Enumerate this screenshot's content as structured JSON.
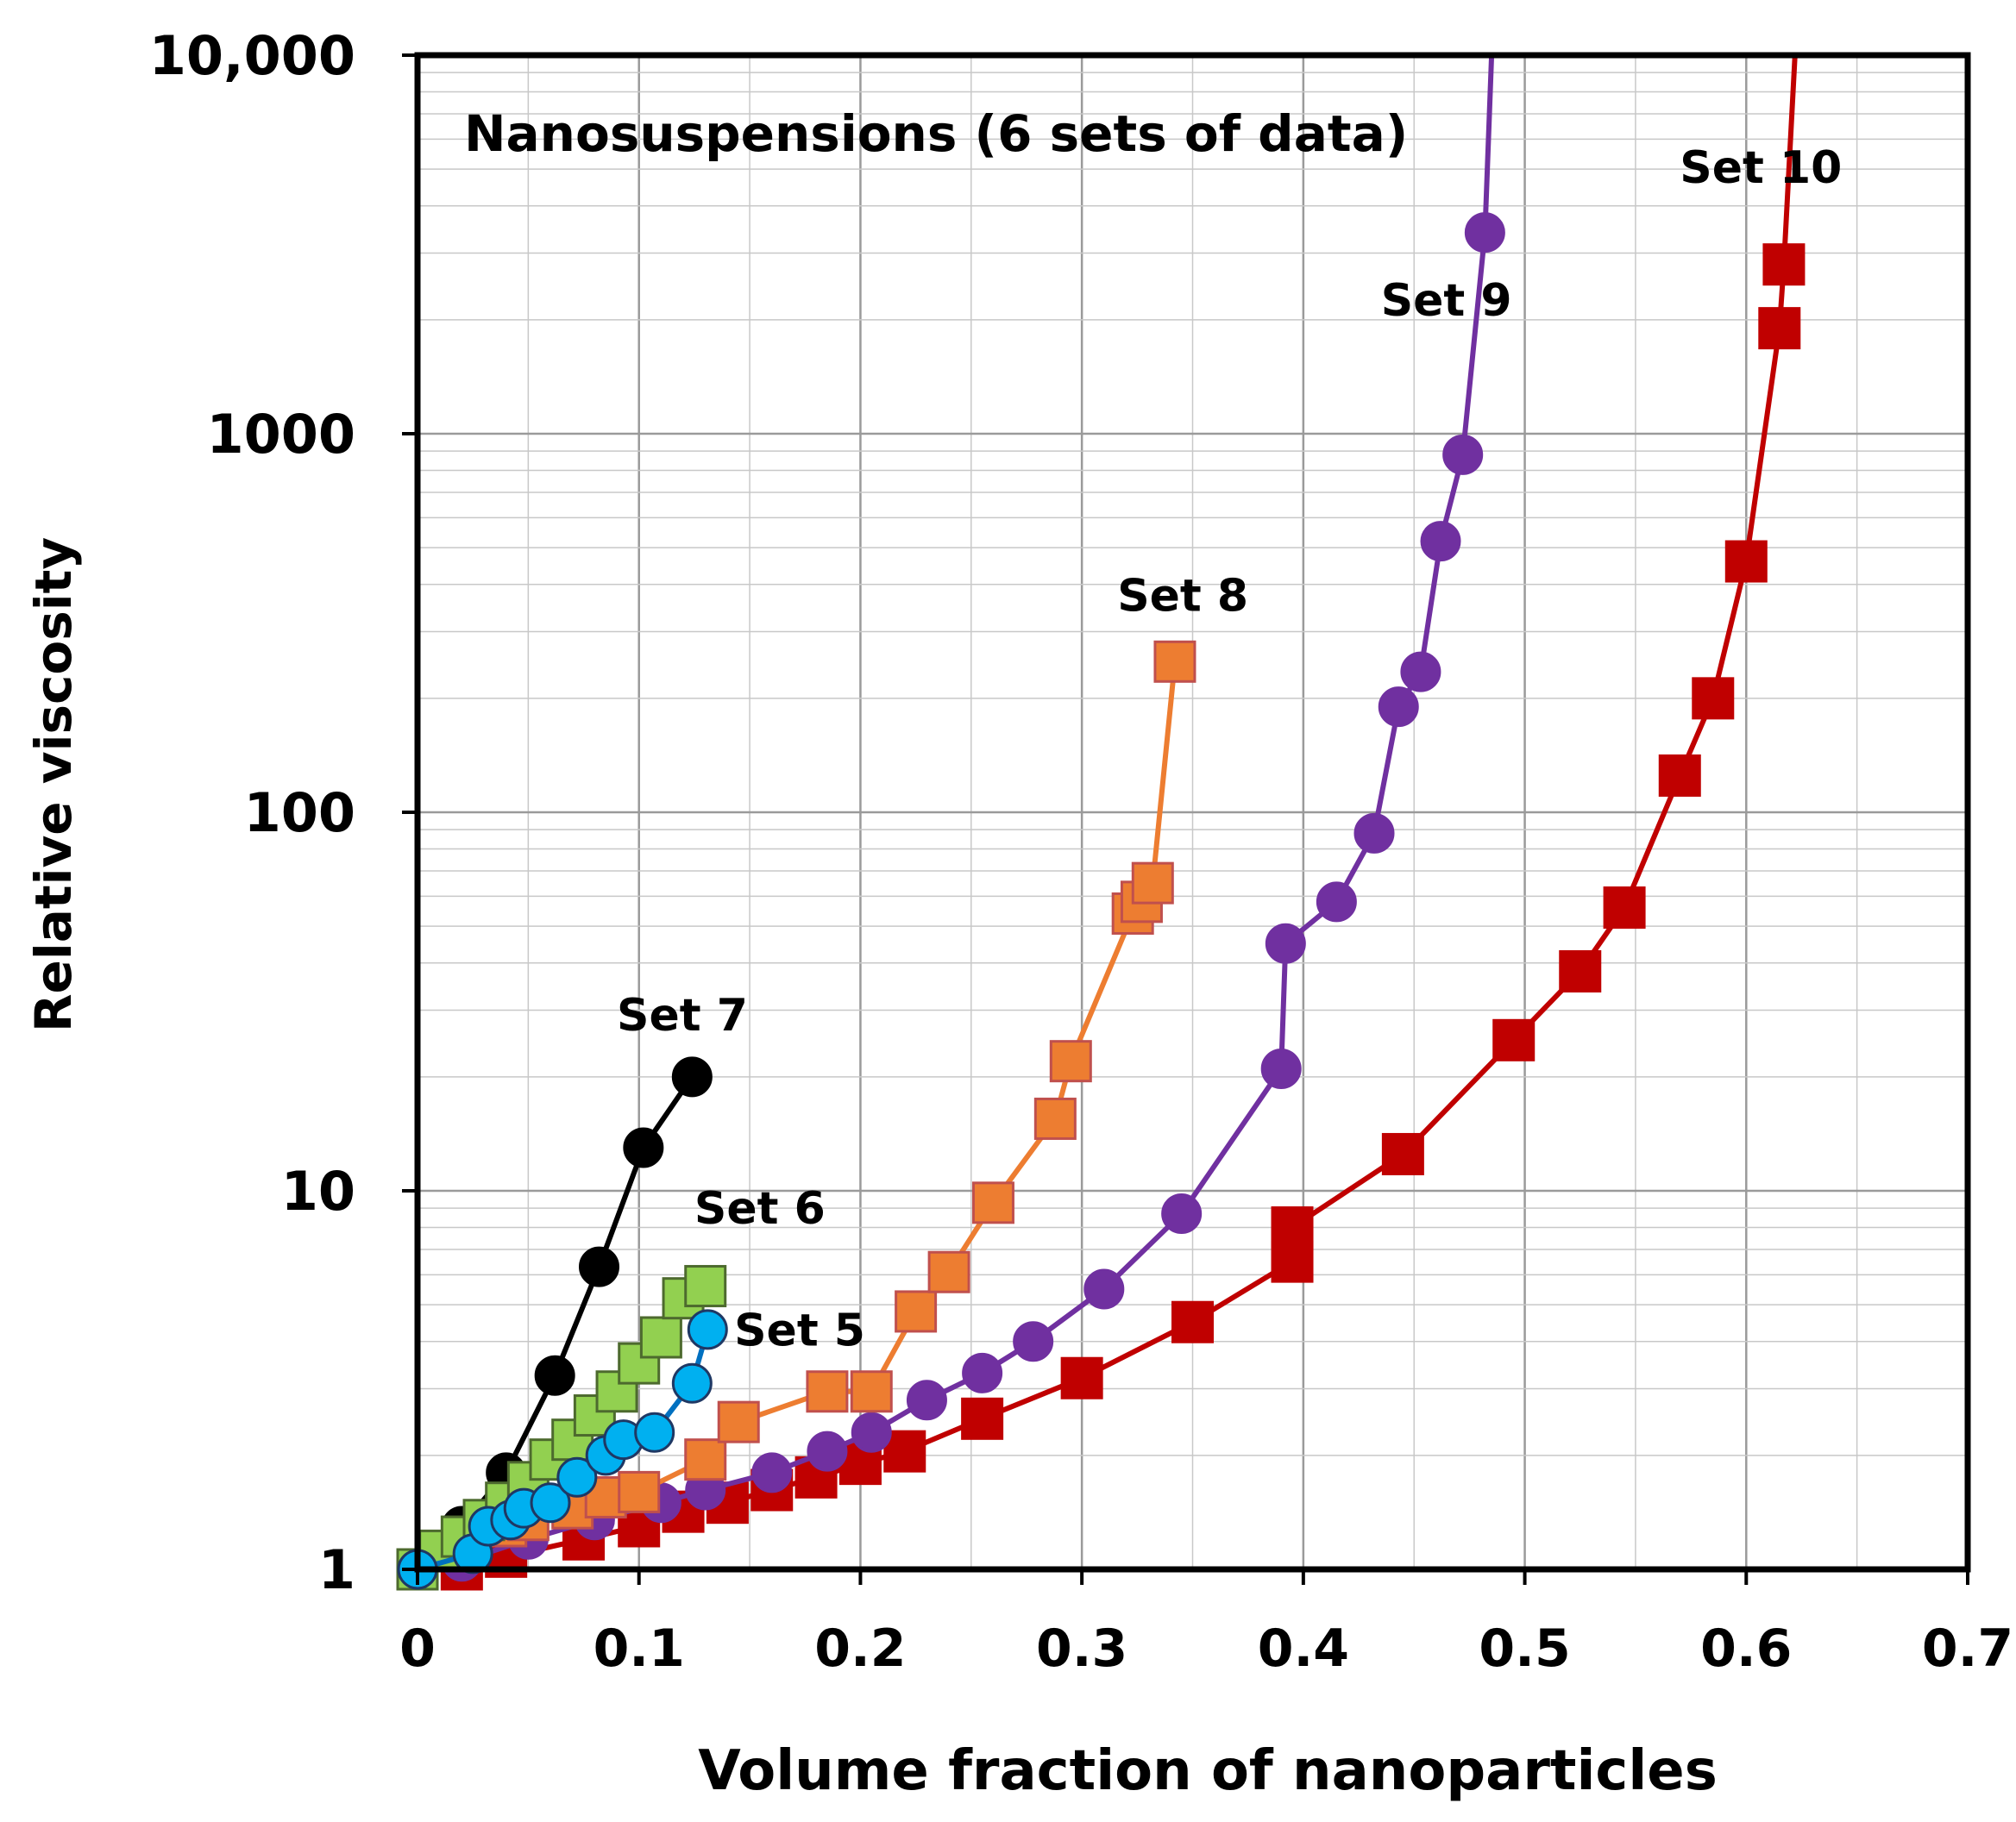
{
  "chart_data": {
    "type": "line",
    "title": "Nanosuspensions (6 sets of data)",
    "xlabel": "Volume fraction of nanoparticles",
    "ylabel": "Relative viscosity",
    "xscale": "linear",
    "yscale": "log",
    "xlim": [
      0,
      0.7
    ],
    "ylim": [
      1,
      10000
    ],
    "x_ticks": [
      0,
      0.1,
      0.2,
      0.3,
      0.4,
      0.5,
      0.6,
      0.7
    ],
    "x_tick_labels": [
      "0",
      "0.1",
      "0.2",
      "0.3",
      "0.4",
      "0.5",
      "0.6",
      "0.7"
    ],
    "y_ticks": [
      1,
      10,
      100,
      1000,
      10000
    ],
    "y_tick_labels": [
      "1",
      "10",
      "100",
      "1000",
      "10,000"
    ],
    "grid": true,
    "series": [
      {
        "name": "Set 10",
        "label": "Set 10",
        "label_anchor": [
          0.57,
          4600
        ],
        "color": "#c00000",
        "marker": "square",
        "marker_fill": "#c00000",
        "marker_stroke": "#c00000",
        "x": [
          0.02,
          0.04,
          0.075,
          0.1,
          0.12,
          0.14,
          0.16,
          0.18,
          0.2,
          0.22,
          0.255,
          0.3,
          0.35,
          0.395,
          0.395,
          0.445,
          0.495,
          0.525,
          0.545,
          0.57,
          0.585,
          0.6,
          0.615,
          0.617
        ],
        "y": [
          1.0,
          1.08,
          1.2,
          1.3,
          1.42,
          1.5,
          1.62,
          1.75,
          1.9,
          2.05,
          2.5,
          3.2,
          4.5,
          6.5,
          8.0,
          12.5,
          25,
          38,
          56,
          125,
          200,
          460,
          1900,
          2800
        ],
        "end_x": 0.622,
        "end_y": 10000
      },
      {
        "name": "Set 9",
        "label": "Set 9",
        "label_anchor": [
          0.435,
          2050
        ],
        "color": "#7030a0",
        "marker": "circle",
        "marker_fill": "#7030a0",
        "marker_stroke": "#7030a0",
        "x": [
          0.02,
          0.05,
          0.08,
          0.11,
          0.13,
          0.16,
          0.185,
          0.205,
          0.23,
          0.255,
          0.278,
          0.31,
          0.345,
          0.39,
          0.392,
          0.415,
          0.432,
          0.443,
          0.453,
          0.462,
          0.472,
          0.482
        ],
        "y": [
          1.05,
          1.2,
          1.35,
          1.5,
          1.62,
          1.8,
          2.05,
          2.3,
          2.8,
          3.3,
          4.0,
          5.5,
          8.7,
          21,
          45,
          58,
          88,
          190,
          235,
          520,
          880,
          3400
        ],
        "end_x": 0.485,
        "end_y": 10000
      },
      {
        "name": "Set 8",
        "label": "Set 8",
        "label_anchor": [
          0.316,
          340
        ],
        "color": "#ed7d31",
        "marker": "square",
        "marker_fill": "#ed7d31",
        "marker_stroke": "#c0504d",
        "x": [
          0.0,
          0.04,
          0.05,
          0.07,
          0.085,
          0.1,
          0.13,
          0.145,
          0.185,
          0.205,
          0.225,
          0.24,
          0.26,
          0.288,
          0.295,
          0.323,
          0.327,
          0.332,
          0.342
        ],
        "y": [
          1.0,
          1.3,
          1.35,
          1.45,
          1.55,
          1.6,
          1.95,
          2.45,
          2.95,
          2.95,
          4.8,
          6.1,
          9.3,
          15.5,
          22,
          54,
          58,
          65,
          250
        ]
      },
      {
        "name": "Set 7",
        "label": "Set 7",
        "label_anchor": [
          0.09,
          26.5
        ],
        "color": "#000000",
        "marker": "circle",
        "marker_fill": "#000000",
        "marker_stroke": "#000000",
        "x": [
          0.0,
          0.02,
          0.04,
          0.062,
          0.082,
          0.102,
          0.124
        ],
        "y": [
          1.0,
          1.3,
          1.8,
          3.25,
          6.3,
          13,
          20
        ]
      },
      {
        "name": "Set 6",
        "label": "Set 6",
        "label_anchor": [
          0.125,
          8.2
        ],
        "color": "#548235",
        "marker": "square",
        "marker_fill": "#92d050",
        "marker_stroke": "#4d6a2e",
        "x": [
          0.0,
          0.01,
          0.02,
          0.03,
          0.04,
          0.05,
          0.06,
          0.07,
          0.08,
          0.09,
          0.1,
          0.11,
          0.12,
          0.13
        ],
        "y": [
          1.0,
          1.12,
          1.22,
          1.35,
          1.5,
          1.7,
          1.95,
          2.2,
          2.55,
          2.95,
          3.5,
          4.1,
          5.2,
          5.6
        ]
      },
      {
        "name": "Set 5",
        "label": "Set 5",
        "label_anchor": [
          0.143,
          3.9
        ],
        "color": "#0070c0",
        "marker": "circle",
        "marker_fill": "#00b0f0",
        "marker_stroke": "#1f3864",
        "x": [
          0.0,
          0.025,
          0.032,
          0.042,
          0.048,
          0.06,
          0.072,
          0.085,
          0.093,
          0.107,
          0.124,
          0.131
        ],
        "y": [
          1.0,
          1.1,
          1.3,
          1.35,
          1.45,
          1.5,
          1.75,
          2.0,
          2.2,
          2.3,
          3.1,
          4.3
        ]
      }
    ]
  }
}
